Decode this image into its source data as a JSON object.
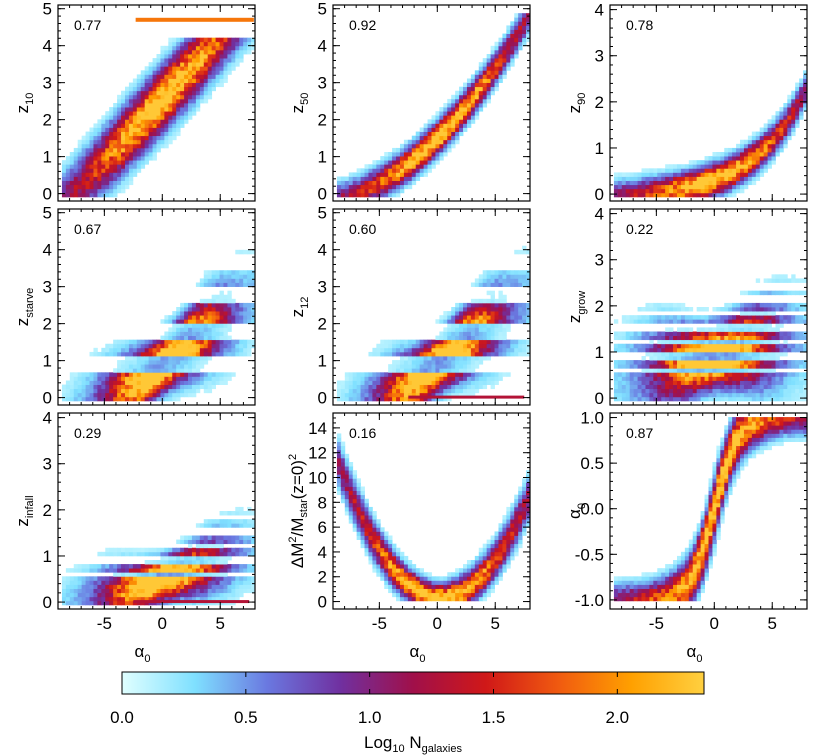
{
  "colorbar": {
    "label_main": "Log",
    "label_sub1": "10",
    "label_mid": " N",
    "label_sub2": "galaxies",
    "ticks": [
      {
        "value": 0.0,
        "label": "0.0"
      },
      {
        "value": 0.5,
        "label": "0.5"
      },
      {
        "value": 1.0,
        "label": "1.0"
      },
      {
        "value": 1.5,
        "label": "1.5"
      },
      {
        "value": 2.0,
        "label": "2.0"
      }
    ],
    "range": [
      0,
      2.35
    ],
    "colors": [
      "#e0ffff",
      "#7fe0ff",
      "#6a78e0",
      "#7030a0",
      "#a0104a",
      "#d01818",
      "#f05a10",
      "#ffa000",
      "#ffd040"
    ]
  },
  "chart_data": [
    {
      "type": "heatmap",
      "row": 0,
      "col": 0,
      "correlation": "0.77",
      "ylabel_main": "z",
      "ylabel_sub": "10",
      "xlabel_main": "",
      "xlabel_sub": "",
      "xlim": [
        -9,
        8
      ],
      "ylim": [
        -0.2,
        5.1
      ],
      "xticks": [
        {
          "value": -5,
          "label": ""
        },
        {
          "value": 0,
          "label": ""
        },
        {
          "value": 5,
          "label": ""
        }
      ],
      "yticks": [
        {
          "value": 0,
          "label": "0"
        },
        {
          "value": 1,
          "label": "1"
        },
        {
          "value": 2,
          "label": "2"
        },
        {
          "value": 3,
          "label": "3"
        },
        {
          "value": 4,
          "label": "4"
        },
        {
          "value": 5,
          "label": "5"
        }
      ],
      "model": {
        "kind": "linear",
        "slope": 0.33,
        "intercept": 2.55,
        "sigma": 0.55,
        "yfloor": 0.0,
        "yceil": 4.2,
        "cap_line": 4.7,
        "cap_x": [
          -2.3,
          7.9
        ]
      }
    },
    {
      "type": "heatmap",
      "row": 0,
      "col": 1,
      "correlation": "0.92",
      "ylabel_main": "z",
      "ylabel_sub": "50",
      "xlabel_main": "",
      "xlabel_sub": "",
      "xlim": [
        -9,
        8
      ],
      "ylim": [
        -0.2,
        5.1
      ],
      "xticks": [
        {
          "value": -5,
          "label": ""
        },
        {
          "value": 0,
          "label": ""
        },
        {
          "value": 5,
          "label": ""
        }
      ],
      "yticks": [
        {
          "value": 0,
          "label": "0"
        },
        {
          "value": 1,
          "label": "1"
        },
        {
          "value": 2,
          "label": "2"
        },
        {
          "value": 3,
          "label": "3"
        },
        {
          "value": 4,
          "label": "4"
        },
        {
          "value": 5,
          "label": "5"
        }
      ],
      "model": {
        "kind": "quad",
        "a": 0.025,
        "b": 0.3,
        "c": 0.85,
        "sigma": 0.28,
        "yfloor": 0.0,
        "yceil": 4.9
      }
    },
    {
      "type": "heatmap",
      "row": 0,
      "col": 2,
      "correlation": "0.78",
      "ylabel_main": "z",
      "ylabel_sub": "90",
      "xlabel_main": "",
      "xlabel_sub": "",
      "xlim": [
        -9,
        8
      ],
      "ylim": [
        -0.15,
        4.1
      ],
      "xticks": [
        {
          "value": -5,
          "label": ""
        },
        {
          "value": 0,
          "label": ""
        },
        {
          "value": 5,
          "label": ""
        }
      ],
      "yticks": [
        {
          "value": 0,
          "label": "0"
        },
        {
          "value": 1,
          "label": "1"
        },
        {
          "value": 2,
          "label": "2"
        },
        {
          "value": 3,
          "label": "3"
        },
        {
          "value": 4,
          "label": "4"
        }
      ],
      "model": {
        "kind": "expo",
        "a": 0.3,
        "k": 0.22,
        "sigma": 0.22,
        "yfloor": 0.0,
        "yceil": 3.9
      }
    },
    {
      "type": "heatmap",
      "row": 1,
      "col": 0,
      "correlation": "0.67",
      "ylabel_main": "z",
      "ylabel_sub": "starve",
      "xlabel_main": "",
      "xlabel_sub": "",
      "xlim": [
        -9,
        8
      ],
      "ylim": [
        -0.2,
        5.1
      ],
      "xticks": [
        {
          "value": -5,
          "label": ""
        },
        {
          "value": 0,
          "label": ""
        },
        {
          "value": 5,
          "label": ""
        }
      ],
      "yticks": [
        {
          "value": 0,
          "label": "0"
        },
        {
          "value": 1,
          "label": "1"
        },
        {
          "value": 2,
          "label": "2"
        },
        {
          "value": 3,
          "label": "3"
        },
        {
          "value": 4,
          "label": "4"
        },
        {
          "value": 5,
          "label": "5"
        }
      ],
      "model": {
        "kind": "fan",
        "center": 0.9,
        "spread": 0.22,
        "sigma": 0.9,
        "yfloor": 0.0,
        "yceil": 4.7,
        "banded": true
      }
    },
    {
      "type": "heatmap",
      "row": 1,
      "col": 1,
      "correlation": "0.60",
      "ylabel_main": "z",
      "ylabel_sub": "12",
      "xlabel_main": "",
      "xlabel_sub": "",
      "xlim": [
        -9,
        8
      ],
      "ylim": [
        -0.2,
        5.1
      ],
      "xticks": [
        {
          "value": -5,
          "label": ""
        },
        {
          "value": 0,
          "label": ""
        },
        {
          "value": 5,
          "label": ""
        }
      ],
      "yticks": [
        {
          "value": 0,
          "label": "0"
        },
        {
          "value": 1,
          "label": "1"
        },
        {
          "value": 2,
          "label": "2"
        },
        {
          "value": 3,
          "label": "3"
        },
        {
          "value": 4,
          "label": "4"
        },
        {
          "value": 5,
          "label": "5"
        }
      ],
      "model": {
        "kind": "fan",
        "center": 0.9,
        "spread": 0.22,
        "sigma": 0.9,
        "yfloor": 0.0,
        "yceil": 4.7,
        "banded": true,
        "baseline": true
      }
    },
    {
      "type": "heatmap",
      "row": 1,
      "col": 2,
      "correlation": "0.22",
      "ylabel_main": "z",
      "ylabel_sub": "grow",
      "xlabel_main": "",
      "xlabel_sub": "",
      "xlim": [
        -9,
        8
      ],
      "ylim": [
        -0.15,
        4.1
      ],
      "xticks": [
        {
          "value": -5,
          "label": ""
        },
        {
          "value": 0,
          "label": ""
        },
        {
          "value": 5,
          "label": ""
        }
      ],
      "yticks": [
        {
          "value": 0,
          "label": "0"
        },
        {
          "value": 1,
          "label": "1"
        },
        {
          "value": 2,
          "label": "2"
        },
        {
          "value": 3,
          "label": "3"
        },
        {
          "value": 4,
          "label": "4"
        }
      ],
      "model": {
        "kind": "fan",
        "center": 0.9,
        "spread": 0.05,
        "sigma": 0.8,
        "yfloor": 0.0,
        "yceil": 3.7,
        "banded": true
      }
    },
    {
      "type": "heatmap",
      "row": 2,
      "col": 0,
      "correlation": "0.29",
      "ylabel_main": "z",
      "ylabel_sub": "infall",
      "xlabel_main": "α",
      "xlabel_sub": "0",
      "xlim": [
        -9,
        8
      ],
      "ylim": [
        -0.15,
        4.1
      ],
      "xticks": [
        {
          "value": -5,
          "label": "-5"
        },
        {
          "value": 0,
          "label": "0"
        },
        {
          "value": 5,
          "label": "5"
        }
      ],
      "yticks": [
        {
          "value": 0,
          "label": "0"
        },
        {
          "value": 1,
          "label": "1"
        },
        {
          "value": 2,
          "label": "2"
        },
        {
          "value": 3,
          "label": "3"
        },
        {
          "value": 4,
          "label": "4"
        }
      ],
      "model": {
        "kind": "fan",
        "center": 0.5,
        "spread": 0.08,
        "sigma": 0.55,
        "yfloor": 0.0,
        "yceil": 3.0,
        "banded": true,
        "baseline": true
      }
    },
    {
      "type": "heatmap",
      "row": 2,
      "col": 1,
      "correlation": "0.16",
      "ylabel_main": "ΔM",
      "ylabel_sup": "2",
      "ylabel_rest": "/M",
      "ylabel_sub": "star",
      "ylabel_tail": "(z=0)",
      "ylabel_sup2": "2",
      "xlabel_main": "α",
      "xlabel_sub": "0",
      "xlim": [
        -9,
        8
      ],
      "ylim": [
        -0.6,
        15.2
      ],
      "xticks": [
        {
          "value": -5,
          "label": "-5"
        },
        {
          "value": 0,
          "label": "0"
        },
        {
          "value": 5,
          "label": "5"
        }
      ],
      "yticks": [
        {
          "value": 0,
          "label": "0"
        },
        {
          "value": 2,
          "label": "2"
        },
        {
          "value": 4,
          "label": "4"
        },
        {
          "value": 6,
          "label": "6"
        },
        {
          "value": 8,
          "label": "8"
        },
        {
          "value": 10,
          "label": "10"
        },
        {
          "value": 12,
          "label": "12"
        },
        {
          "value": 14,
          "label": "14"
        }
      ],
      "model": {
        "kind": "parab",
        "a": 0.14,
        "x0": 0.3,
        "sigma": 0.7,
        "yfloor": 0.0,
        "yceil": 15
      }
    },
    {
      "type": "heatmap",
      "row": 2,
      "col": 2,
      "correlation": "0.87",
      "ylabel_main": "α",
      "ylabel_sub": "0",
      "xlabel_main": "α",
      "xlabel_sub": "0",
      "xlim": [
        -9,
        8
      ],
      "ylim": [
        -1.1,
        1.05
      ],
      "xticks": [
        {
          "value": -5,
          "label": "-5"
        },
        {
          "value": 0,
          "label": "0"
        },
        {
          "value": 5,
          "label": "5"
        }
      ],
      "yticks": [
        {
          "value": -1.0,
          "label": "-1.0"
        },
        {
          "value": -0.5,
          "label": "-0.5"
        },
        {
          "value": 0.0,
          "label": "0.0"
        },
        {
          "value": 0.5,
          "label": "0.5"
        },
        {
          "value": 1.0,
          "label": "1.0"
        }
      ],
      "model": {
        "kind": "tanh",
        "k": 0.5,
        "sigma": 0.12
      }
    }
  ]
}
